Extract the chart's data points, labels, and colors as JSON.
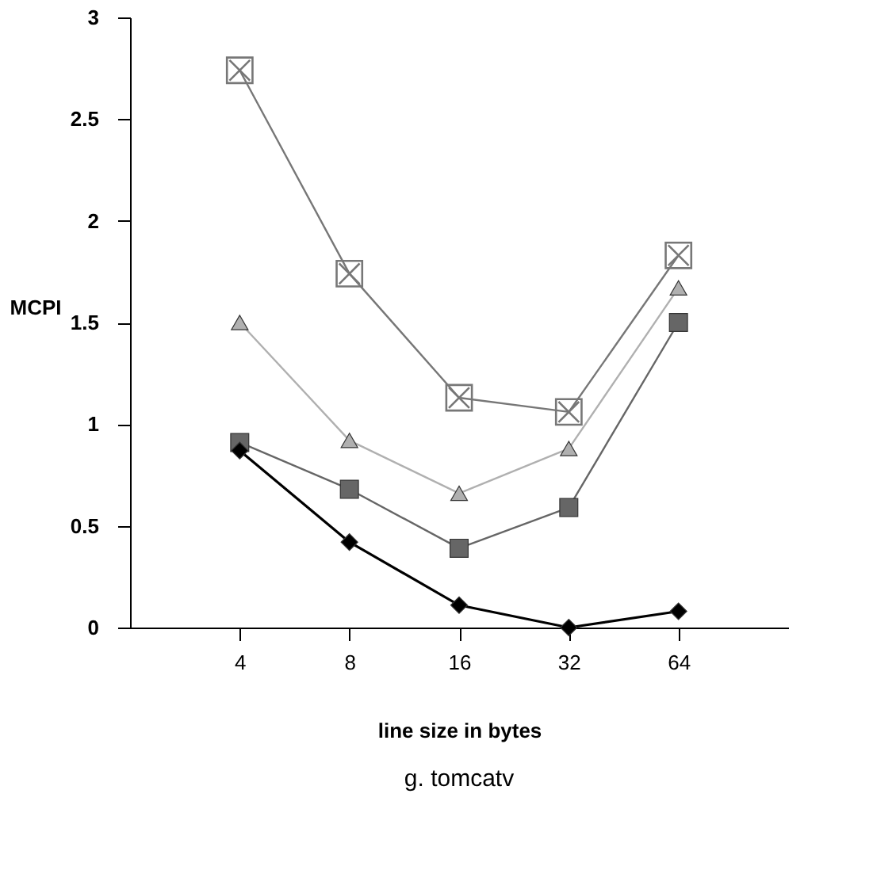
{
  "chart_data": {
    "type": "line",
    "title": "g. tomcatv",
    "xlabel": "line size in bytes",
    "ylabel": "MCPI",
    "categories": [
      "4",
      "8",
      "16",
      "32",
      "64"
    ],
    "series": [
      {
        "color": "#777777",
        "marker": "cross",
        "values": [
          2.74,
          1.74,
          1.13,
          1.06,
          1.83
        ]
      },
      {
        "color": "#b0b0b0",
        "marker": "triangle",
        "values": [
          1.5,
          0.92,
          0.66,
          0.88,
          1.67
        ]
      },
      {
        "color": "#666666",
        "marker": "square",
        "values": [
          0.91,
          0.68,
          0.39,
          0.59,
          1.5
        ]
      },
      {
        "color": "#000000",
        "marker": "diamond",
        "values": [
          0.87,
          0.42,
          0.11,
          0,
          0.08
        ]
      }
    ],
    "ylim": [
      0,
      3
    ],
    "yticks": [
      0,
      0.5,
      1,
      1.5,
      2,
      2.5,
      3
    ]
  }
}
